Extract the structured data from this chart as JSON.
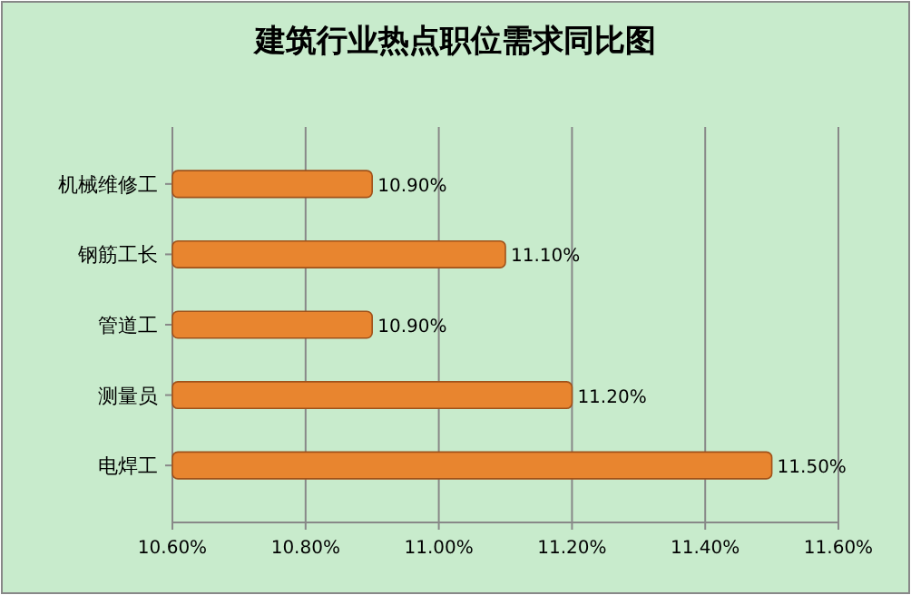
{
  "chart_data": {
    "type": "bar",
    "orientation": "horizontal",
    "title": "建筑行业热点职位需求同比图",
    "categories": [
      "机械维修工",
      "钢筋工长",
      "管道工",
      "测量员",
      "电焊工"
    ],
    "values": [
      10.9,
      11.1,
      10.9,
      11.2,
      11.5
    ],
    "value_labels": [
      "10.90%",
      "11.10%",
      "10.90%",
      "11.20%",
      "11.50%"
    ],
    "color": "#e8852f",
    "xlim": [
      10.6,
      11.6
    ],
    "xticks": [
      {
        "value": 10.6,
        "label": "10.60%"
      },
      {
        "value": 10.8,
        "label": "10.80%"
      },
      {
        "value": 11.0,
        "label": "11.00%"
      },
      {
        "value": 11.2,
        "label": "11.20%"
      },
      {
        "value": 11.4,
        "label": "11.40%"
      },
      {
        "value": 11.6,
        "label": "11.60%"
      }
    ],
    "grid": "x"
  }
}
